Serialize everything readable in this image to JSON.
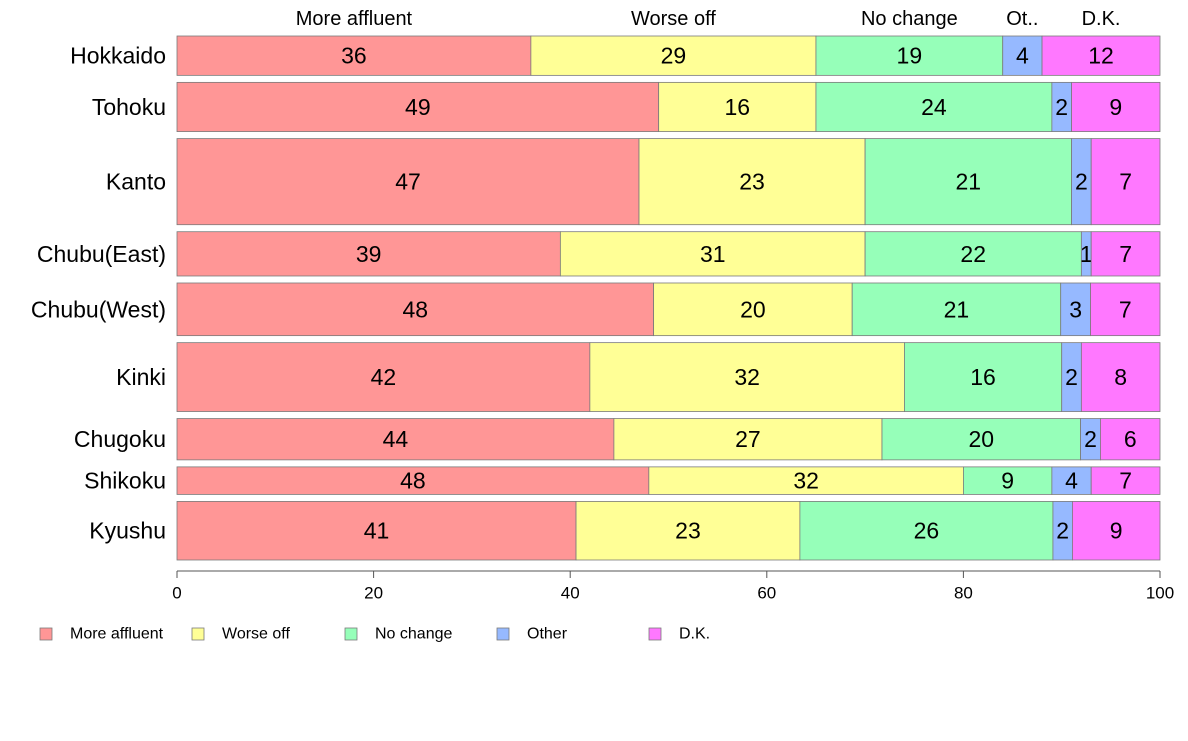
{
  "chart_data": {
    "type": "bar",
    "orientation": "horizontal",
    "stacked": true,
    "percent_scale": true,
    "variable_bar_height": true,
    "title": "",
    "xlabel": "",
    "ylabel": "",
    "xlim": [
      0,
      100
    ],
    "xticks": [
      "0",
      "20",
      "40",
      "60",
      "80",
      "100"
    ],
    "grid": false,
    "legend_position": "bottom-left",
    "header_labels": [
      "More affluent",
      "Worse off",
      "No change",
      "Ot..",
      "D.K."
    ],
    "categories": [
      "Hokkaido",
      "Tohoku",
      "Kanto",
      "Chubu(East)",
      "Chubu(West)",
      "Kinki",
      "Chugoku",
      "Shikoku",
      "Kyushu"
    ],
    "series": [
      {
        "name": "More affluent",
        "color": "#ff9696",
        "values": [
          36,
          49,
          47,
          39,
          48,
          42,
          44,
          48,
          41
        ]
      },
      {
        "name": "Worse off",
        "color": "#ffff96",
        "values": [
          29,
          16,
          23,
          31,
          20,
          32,
          27,
          32,
          23
        ]
      },
      {
        "name": "No change",
        "color": "#96ffb9",
        "values": [
          19,
          24,
          21,
          22,
          21,
          16,
          20,
          9,
          26
        ]
      },
      {
        "name": "Other",
        "color": "#96b9ff",
        "values": [
          4,
          2,
          2,
          1,
          3,
          2,
          2,
          4,
          2
        ]
      },
      {
        "name": "D.K.",
        "color": "#ff78ff",
        "values": [
          12,
          9,
          7,
          7,
          7,
          8,
          6,
          7,
          9
        ]
      }
    ],
    "bar_weights": [
      0.8,
      1.0,
      1.75,
      0.9,
      1.07,
      1.4,
      0.84,
      0.56,
      1.19
    ],
    "data_labels": [
      [
        "36",
        "29",
        "19",
        "4",
        "12"
      ],
      [
        "49",
        "16",
        "24",
        "2",
        "9"
      ],
      [
        "47",
        "23",
        "21",
        "2",
        "7"
      ],
      [
        "39",
        "31",
        "22",
        "1",
        "7"
      ],
      [
        "48",
        "20",
        "21",
        "3",
        "7"
      ],
      [
        "42",
        "32",
        "16",
        "2",
        "8"
      ],
      [
        "44",
        "27",
        "20",
        "2",
        "6"
      ],
      [
        "48",
        "32",
        "9",
        "4",
        "7"
      ],
      [
        "41",
        "23",
        "26",
        "2",
        "9"
      ]
    ]
  }
}
